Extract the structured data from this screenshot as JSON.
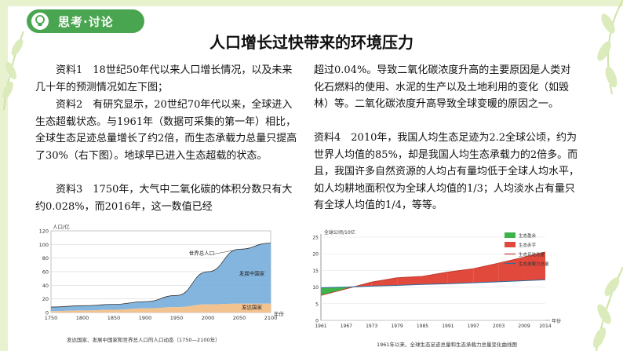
{
  "badge": {
    "label": "思考·讨论"
  },
  "title": "人口增长过快带来的环境压力",
  "left_paragraphs": [
    "资料1　18世纪50年代以来人口增长情况，以及未来几十年的预测情况如左下图；",
    "资料2　有研究显示，20世纪70年代以来，全球进入生态超载状态。与1961年（数据可采集的第一年）相比，全球生态足迹总量增长了约2倍，而生态承载力总量只提高了30%（右下图）。地球早已进入生态超载的状态。",
    "资料3　1750年，大气中二氧化碳的体积分数只有大约0.028%，而2016年，这一数值已经"
  ],
  "right_paragraphs": [
    "超过0.04%。导致二氧化碳浓度升高的主要原因是人类对化石燃料的使用、水泥的生产以及土地利用的变化（如毁林）等。二氧化碳浓度升高导致全球变暖的原因之一。",
    "资料4　2010年，我国人均生态足迹为2.2全球公顷，约为世界人均值的85%，却是我国人均生态承载力的2倍多。而且，我国许多自然资源的人均占有量均低于全球人均水平，如人均耕地面积仅为全球人均值的1/3；人均淡水占有量只有全球人均值的1/4，等等。"
  ],
  "chart_data": [
    {
      "type": "area",
      "ylabel": "人口/亿",
      "xlabel": "年份",
      "x_ticks": [
        1750,
        1800,
        1850,
        1900,
        1950,
        2000,
        2050,
        2100
      ],
      "y_ticks": [
        0,
        20,
        40,
        60,
        80,
        100,
        120
      ],
      "series": [
        {
          "name": "发达国家",
          "x": [
            1750,
            1800,
            1850,
            1900,
            1950,
            2000,
            2050,
            2100
          ],
          "values": [
            2,
            3,
            4,
            6,
            8,
            12,
            13,
            13
          ]
        },
        {
          "name": "发展中国家",
          "x": [
            1750,
            1800,
            1850,
            1900,
            1950,
            2000,
            2050,
            2100
          ],
          "values": [
            6,
            7,
            8,
            10,
            17,
            48,
            80,
            89
          ]
        }
      ],
      "total_label": "世界总人口",
      "caption": "发达国家、发展中国家和世界总人口的人口动态（1750—2100年）",
      "colors": {
        "developed": "#f3c38f",
        "developing": "#6ea8d8",
        "line": "#333333"
      }
    },
    {
      "type": "area",
      "ylabel": "全球公顷/10亿",
      "xlabel": "年份",
      "x_ticks": [
        1961,
        1967,
        1973,
        1979,
        1985,
        1991,
        1997,
        2003,
        2009,
        2014
      ],
      "y_ticks": [
        0,
        5,
        10,
        15,
        20,
        25
      ],
      "series": [
        {
          "name": "生态足迹总量",
          "x": [
            1961,
            1967,
            1973,
            1979,
            1985,
            1991,
            1997,
            2003,
            2009,
            2014
          ],
          "values": [
            7.5,
            9.5,
            11.5,
            12.8,
            13.2,
            14.5,
            15.5,
            17.2,
            19.0,
            20.5
          ]
        },
        {
          "name": "生态承载力总量",
          "x": [
            1961,
            1967,
            1973,
            1979,
            1985,
            1991,
            1997,
            2003,
            2009,
            2014
          ],
          "values": [
            9.8,
            10.0,
            10.3,
            10.5,
            10.8,
            11.0,
            11.3,
            11.6,
            11.9,
            12.2
          ]
        }
      ],
      "legend": [
        "生态盈余",
        "生态赤字",
        "生态足迹总量",
        "生态承载力总量"
      ],
      "caption": "1961年以来，全球生态足迹总量和生态承载力总量变化曲线图",
      "colors": {
        "surplus": "#3cb44b",
        "deficit": "#e0493c",
        "footprint": "#c0392b",
        "capacity": "#2c6e9e"
      }
    }
  ]
}
